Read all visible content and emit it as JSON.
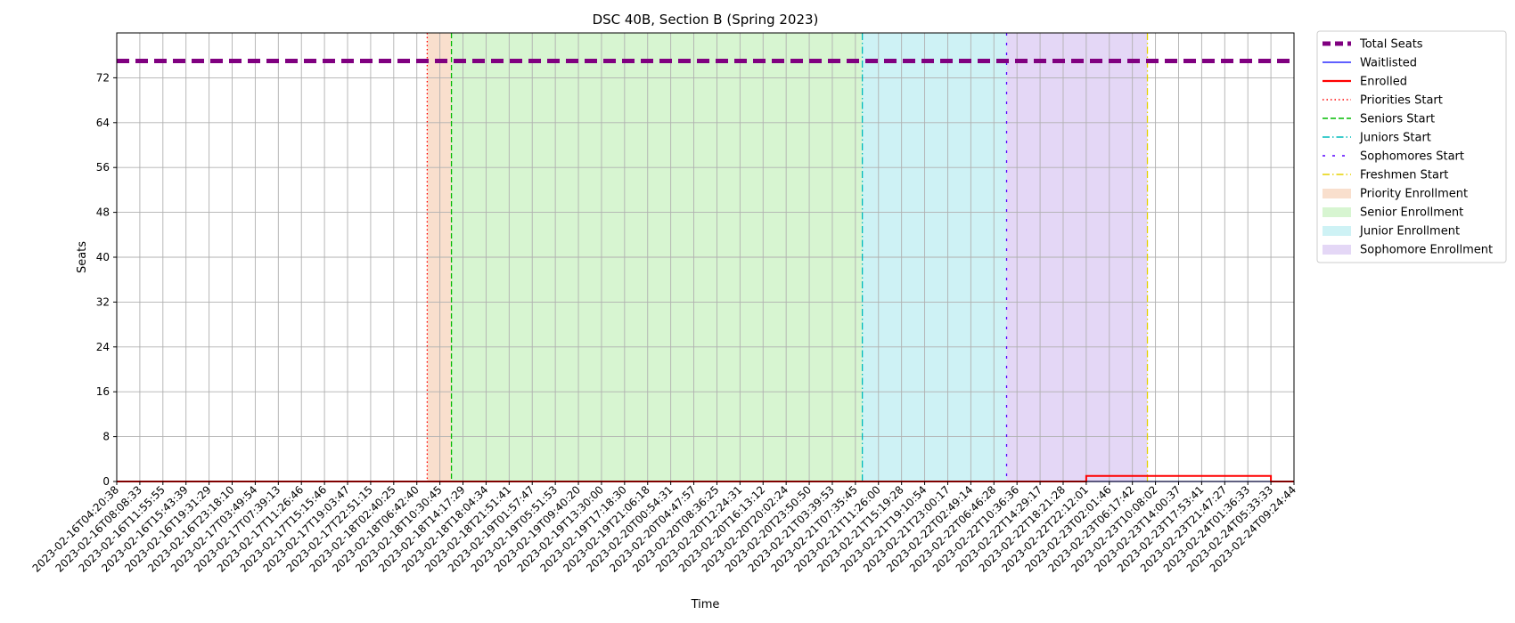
{
  "chart_data": {
    "type": "line",
    "title": "DSC 40B, Section B (Spring 2023)",
    "xlabel": "Time",
    "ylabel": "Seats",
    "ylim": [
      0,
      80
    ],
    "yticks": [
      0,
      8,
      16,
      24,
      32,
      40,
      48,
      56,
      64,
      72
    ],
    "grid": true,
    "legend_position": "outside-right",
    "x": [
      "2023-02-16T04:20:38",
      "2023-02-16T08:08:33",
      "2023-02-16T11:55:55",
      "2023-02-16T15:43:39",
      "2023-02-16T19:31:29",
      "2023-02-16T23:18:10",
      "2023-02-17T03:49:54",
      "2023-02-17T07:39:13",
      "2023-02-17T11:26:46",
      "2023-02-17T15:15:46",
      "2023-02-17T19:03:47",
      "2023-02-17T22:51:15",
      "2023-02-18T02:40:25",
      "2023-02-18T06:42:40",
      "2023-02-18T10:30:45",
      "2023-02-18T14:17:29",
      "2023-02-18T18:04:34",
      "2023-02-18T21:51:41",
      "2023-02-19T01:57:47",
      "2023-02-19T05:51:53",
      "2023-02-19T09:40:20",
      "2023-02-19T13:30:00",
      "2023-02-19T17:18:30",
      "2023-02-19T21:06:18",
      "2023-02-20T00:54:31",
      "2023-02-20T04:47:57",
      "2023-02-20T08:36:25",
      "2023-02-20T12:24:31",
      "2023-02-20T16:13:12",
      "2023-02-20T20:02:24",
      "2023-02-20T23:50:50",
      "2023-02-21T03:39:53",
      "2023-02-21T07:35:45",
      "2023-02-21T11:26:00",
      "2023-02-21T15:19:28",
      "2023-02-21T19:10:54",
      "2023-02-21T23:00:17",
      "2023-02-22T02:49:14",
      "2023-02-22T06:46:28",
      "2023-02-22T10:36:36",
      "2023-02-22T14:29:17",
      "2023-02-22T18:21:28",
      "2023-02-22T22:12:01",
      "2023-02-23T02:01:46",
      "2023-02-23T06:17:42",
      "2023-02-23T10:08:02",
      "2023-02-23T14:00:37",
      "2023-02-23T17:53:41",
      "2023-02-23T21:47:27",
      "2023-02-24T01:36:33",
      "2023-02-24T05:33:33",
      "2023-02-24T09:24:44"
    ],
    "series": [
      {
        "name": "Total Seats",
        "color": "#800080",
        "style": "dashed-thick",
        "values": [
          75,
          75,
          75,
          75,
          75,
          75,
          75,
          75,
          75,
          75,
          75,
          75,
          75,
          75,
          75,
          75,
          75,
          75,
          75,
          75,
          75,
          75,
          75,
          75,
          75,
          75,
          75,
          75,
          75,
          75,
          75,
          75,
          75,
          75,
          75,
          75,
          75,
          75,
          75,
          75,
          75,
          75,
          75,
          75,
          75,
          75,
          75,
          75,
          75,
          75,
          75,
          75
        ]
      },
      {
        "name": "Waitlisted",
        "color": "#0000ff",
        "style": "solid-thin",
        "values": [
          0,
          0,
          0,
          0,
          0,
          0,
          0,
          0,
          0,
          0,
          0,
          0,
          0,
          0,
          0,
          0,
          0,
          0,
          0,
          0,
          0,
          0,
          0,
          0,
          0,
          0,
          0,
          0,
          0,
          0,
          0,
          0,
          0,
          0,
          0,
          0,
          0,
          0,
          0,
          0,
          0,
          0,
          0,
          0,
          0,
          0,
          0,
          0,
          0,
          0,
          0,
          0
        ]
      },
      {
        "name": "Enrolled",
        "color": "#ff0000",
        "style": "solid",
        "values": [
          0,
          0,
          0,
          0,
          0,
          0,
          0,
          0,
          0,
          0,
          0,
          0,
          0,
          0,
          0,
          0,
          0,
          0,
          0,
          0,
          0,
          0,
          0,
          0,
          0,
          0,
          0,
          0,
          0,
          0,
          0,
          0,
          0,
          0,
          0,
          0,
          0,
          0,
          0,
          0,
          0,
          0,
          1,
          1,
          1,
          1,
          1,
          1,
          1,
          1,
          0,
          0
        ]
      }
    ],
    "vlines": [
      {
        "name": "Priorities Start",
        "at": 13.45,
        "color": "#ff0000",
        "style": "dotted"
      },
      {
        "name": "Seniors Start",
        "at": 14.5,
        "color": "#00bb00",
        "style": "dashed"
      },
      {
        "name": "Juniors Start",
        "at": 32.3,
        "color": "#00bbbb",
        "style": "dashdot"
      },
      {
        "name": "Sophomores Start",
        "at": 38.55,
        "color": "#5500ff",
        "style": "loosedash"
      },
      {
        "name": "Freshmen Start",
        "at": 44.65,
        "color": "#e6d200",
        "style": "dashdot"
      }
    ],
    "spans": [
      {
        "name": "Priority Enrollment",
        "from": 13.45,
        "to": 14.5,
        "color": "#f4c4a4"
      },
      {
        "name": "Senior Enrollment",
        "from": 14.5,
        "to": 32.3,
        "color": "#b7edab"
      },
      {
        "name": "Junior Enrollment",
        "from": 32.3,
        "to": 38.55,
        "color": "#a6e7ec"
      },
      {
        "name": "Sophomore Enrollment",
        "from": 38.55,
        "to": 44.65,
        "color": "#cdb6ef"
      }
    ]
  }
}
